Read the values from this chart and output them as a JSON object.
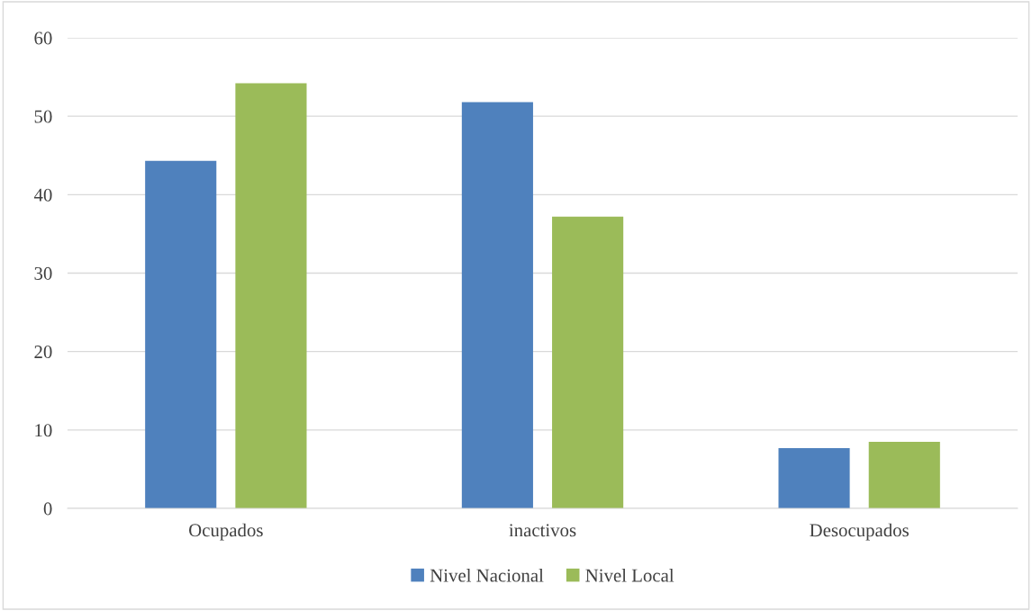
{
  "chart_data": {
    "type": "bar",
    "categories": [
      "Ocupados",
      "inactivos",
      "Desocupados"
    ],
    "series": [
      {
        "name": "Nivel Nacional",
        "color": "#4f81bd",
        "values": [
          44.3,
          51.8,
          7.7
        ]
      },
      {
        "name": "Nivel Local",
        "color": "#9bbb59",
        "values": [
          54.2,
          37.2,
          8.5
        ]
      }
    ],
    "ylim": [
      0,
      60
    ],
    "yticks": [
      0,
      10,
      20,
      30,
      40,
      50,
      60
    ],
    "grid": "y",
    "legend": "bottom"
  }
}
